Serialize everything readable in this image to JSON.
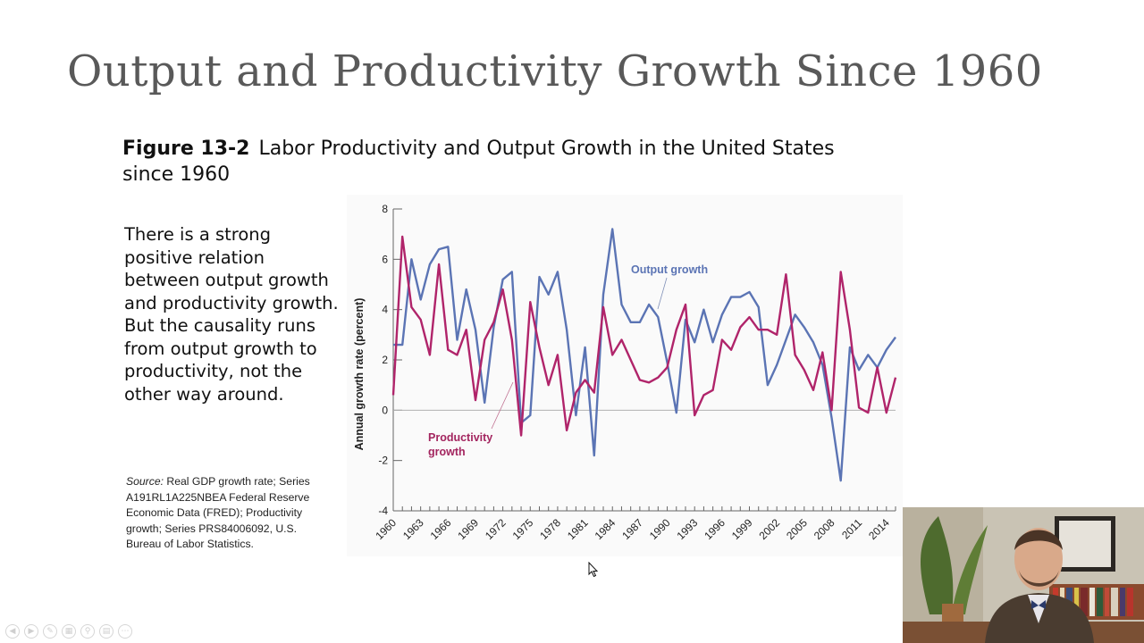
{
  "slide": {
    "title": "Output and Productivity Growth Since 1960"
  },
  "figure": {
    "number": "Figure 13-2",
    "caption": "Labor Productivity and Output Growth in the United States since 1960"
  },
  "body_text": "There is a strong positive relation between output growth and productivity growth. But the causality runs from output growth to productivity, not the other way around.",
  "source": {
    "label": "Source:",
    "text": "Real GDP growth rate; Series A191RL1A225NBEA Federal Reserve Economic Data (FRED); Productivity growth; Series PRS84006092, U.S. Bureau of Labor Statistics."
  },
  "colors": {
    "output_series": "#5b74b4",
    "productivity_series": "#b0246a",
    "label_output": "#5b74b4",
    "label_productivity": "#a3255f",
    "axis": "#666666"
  },
  "chart_data": {
    "type": "line",
    "ylabel": "Annual growth rate (percent)",
    "xlabel": "",
    "ylim": [
      -4,
      8
    ],
    "yticks": [
      -4,
      -2,
      0,
      2,
      4,
      6,
      8
    ],
    "xlim": [
      1960,
      2015
    ],
    "xticks": [
      "1960",
      "1963",
      "1966",
      "1969",
      "1972",
      "1975",
      "1978",
      "1981",
      "1984",
      "1987",
      "1990",
      "1993",
      "1996",
      "1999",
      "2002",
      "2005",
      "2008",
      "2011",
      "2014"
    ],
    "zero_line": true,
    "grid": false,
    "annotations": [
      {
        "text": "Output growth",
        "series": "Output growth"
      },
      {
        "text": "Productivity growth",
        "series": "Productivity growth"
      }
    ],
    "x": [
      1960,
      1961,
      1962,
      1963,
      1964,
      1965,
      1966,
      1967,
      1968,
      1969,
      1970,
      1971,
      1972,
      1973,
      1974,
      1975,
      1976,
      1977,
      1978,
      1979,
      1980,
      1981,
      1982,
      1983,
      1984,
      1985,
      1986,
      1987,
      1988,
      1989,
      1990,
      1991,
      1992,
      1993,
      1994,
      1995,
      1996,
      1997,
      1998,
      1999,
      2000,
      2001,
      2002,
      2003,
      2004,
      2005,
      2006,
      2007,
      2008,
      2009,
      2010,
      2011,
      2012,
      2013,
      2014,
      2015
    ],
    "series": [
      {
        "name": "Output growth",
        "values": [
          2.6,
          2.6,
          6.0,
          4.4,
          5.8,
          6.4,
          6.5,
          2.8,
          4.8,
          3.2,
          0.3,
          3.3,
          5.2,
          5.5,
          -0.5,
          -0.2,
          5.3,
          4.6,
          5.5,
          3.2,
          -0.2,
          2.5,
          -1.8,
          4.6,
          7.2,
          4.2,
          3.5,
          3.5,
          4.2,
          3.7,
          1.9,
          -0.1,
          3.6,
          2.7,
          4.0,
          2.7,
          3.8,
          4.5,
          4.5,
          4.7,
          4.1,
          1.0,
          1.8,
          2.8,
          3.8,
          3.3,
          2.7,
          1.8,
          -0.3,
          -2.8,
          2.5,
          1.6,
          2.2,
          1.7,
          2.4,
          2.9
        ]
      },
      {
        "name": "Productivity growth",
        "values": [
          0.6,
          6.9,
          4.1,
          3.6,
          2.2,
          5.8,
          2.4,
          2.2,
          3.2,
          0.4,
          2.8,
          3.5,
          4.8,
          2.8,
          -1.0,
          4.3,
          2.5,
          1.0,
          2.2,
          -0.8,
          0.7,
          1.2,
          0.7,
          4.1,
          2.2,
          2.8,
          2.0,
          1.2,
          1.1,
          1.3,
          1.7,
          3.2,
          4.2,
          -0.2,
          0.6,
          0.8,
          2.8,
          2.4,
          3.3,
          3.7,
          3.2,
          3.2,
          3.0,
          5.4,
          2.2,
          1.6,
          0.8,
          2.3,
          0.0,
          5.5,
          3.2,
          0.1,
          -0.1,
          1.7,
          -0.1,
          1.3
        ]
      }
    ]
  }
}
